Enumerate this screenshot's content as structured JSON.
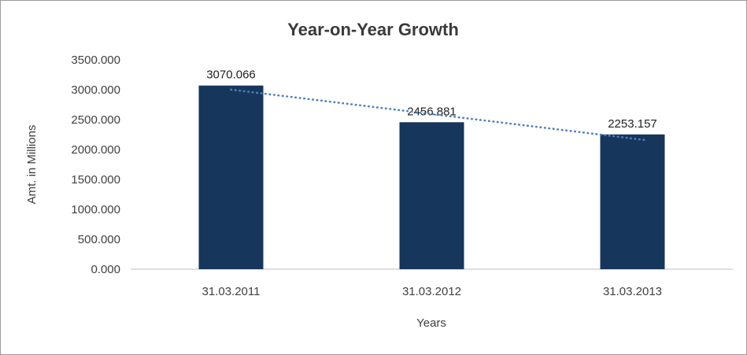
{
  "chart_data": {
    "type": "bar",
    "title": "Year-on-Year Growth",
    "xlabel": "Years",
    "ylabel": "Amt. in Millions",
    "categories": [
      "31.03.2011",
      "31.03.2012",
      "31.03.2013"
    ],
    "values": [
      3070.066,
      2456.881,
      2253.157
    ],
    "data_labels": [
      "3070.066",
      "2456.881",
      "2253.157"
    ],
    "ylim": [
      0,
      3500
    ],
    "ytick_step": 500,
    "ytick_labels": [
      "0.000",
      "500.000",
      "1000.000",
      "1500.000",
      "2000.000",
      "2500.000",
      "3000.000",
      "3500.000"
    ],
    "grid": false,
    "legend": "none",
    "trendline": true,
    "colors": {
      "bar": "#16365c",
      "trendline": "#4f81bd",
      "axis_line": "#bfbfbf",
      "text": "#404040",
      "title": "#3a3a3a",
      "frame_border": "#9c9c9c"
    }
  }
}
